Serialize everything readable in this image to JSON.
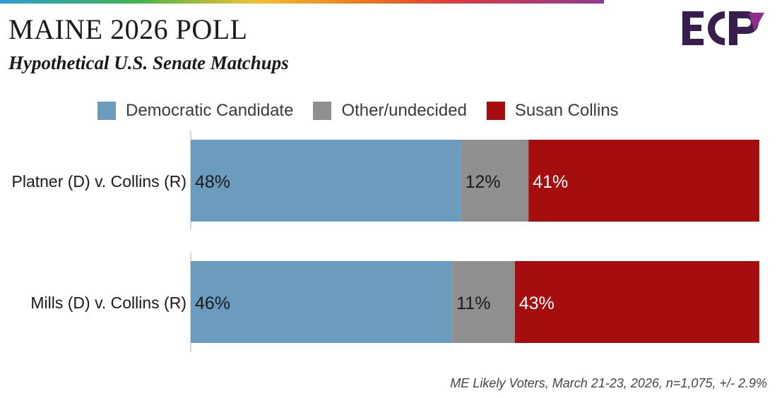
{
  "header": {
    "title": "MAINE 2026 POLL",
    "subtitle": "Hypothetical U.S. Senate Matchups",
    "logo_text": "ECP"
  },
  "colors": {
    "democratic": "#6b9bbd",
    "other": "#8f8f8f",
    "collins": "#a50e0e",
    "logo": "#3a1d4f"
  },
  "legend": [
    {
      "label": "Democratic Candidate",
      "color": "#6b9bbd"
    },
    {
      "label": "Other/undecided",
      "color": "#8f8f8f"
    },
    {
      "label": "Susan Collins",
      "color": "#a50e0e"
    }
  ],
  "chart_data": {
    "type": "bar",
    "orientation": "horizontal",
    "stacked": true,
    "title": "MAINE 2026 POLL",
    "subtitle": "Hypothetical U.S. Senate Matchups",
    "categories": [
      "Platner (D) v. Collins (R)",
      "Mills (D) v. Collins (R)"
    ],
    "series": [
      {
        "name": "Democratic Candidate",
        "values": [
          48,
          46
        ],
        "labels": [
          "48%",
          "46%"
        ],
        "color": "#6b9bbd"
      },
      {
        "name": "Other/undecided",
        "values": [
          12,
          11
        ],
        "labels": [
          "12%",
          "11%"
        ],
        "color": "#8f8f8f"
      },
      {
        "name": "Susan Collins",
        "values": [
          41,
          43
        ],
        "labels": [
          "41%",
          "43%"
        ],
        "color": "#a50e0e"
      }
    ],
    "legend_position": "top",
    "grid": false
  },
  "footnote": "ME Likely Voters, March 21-23, 2026, n=1,075, +/- 2.9%"
}
